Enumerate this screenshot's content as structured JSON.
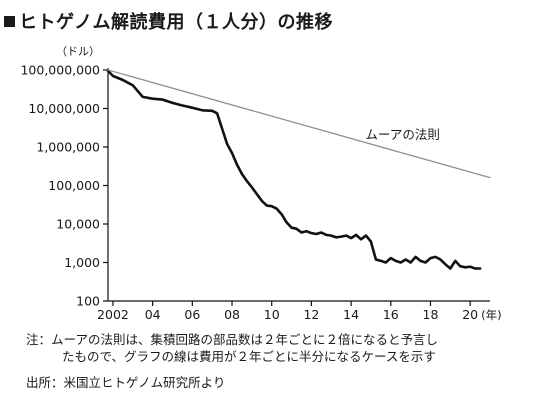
{
  "title": "ヒトゲノム解読費用（１人分）の推移",
  "notes": {
    "line1": "注：ムーアの法則は、集積回路の部品数は２年ごとに２倍になると予言し",
    "line2": "たもので、グラフの線は費用が２年ごとに半分になるケースを示す"
  },
  "source": "出所：米国立ヒトゲノム研究所より",
  "colors": {
    "cost_line": "#111111",
    "moore_line": "#8f8f8f",
    "axis": "#111111"
  },
  "chart_data": {
    "type": "line",
    "title": "ヒトゲノム解読費用（１人分）の推移",
    "ylabel": "（ドル）",
    "xlabel": "(年)",
    "yscale": "log",
    "ylim": [
      100,
      100000000
    ],
    "xlim": [
      2001.75,
      2021.0
    ],
    "y_tick_values": [
      100,
      1000,
      10000,
      100000,
      1000000,
      10000000,
      100000000
    ],
    "y_tick_labels": [
      "100",
      "1,000",
      "10,000",
      "100,000",
      "1,000,000",
      "10,000,000",
      "100,000,000"
    ],
    "x_tick_values": [
      2002,
      2004,
      2006,
      2008,
      2010,
      2012,
      2014,
      2016,
      2018,
      2020
    ],
    "x_tick_labels": [
      "2002",
      "04",
      "06",
      "08",
      "10",
      "12",
      "14",
      "16",
      "18",
      "20"
    ],
    "grid": false,
    "series": [
      {
        "name": "",
        "style": "bold",
        "x": [
          2001.75,
          2002.0,
          2002.5,
          2003.0,
          2003.5,
          2004.0,
          2004.5,
          2005.0,
          2005.5,
          2006.0,
          2006.5,
          2007.0,
          2007.25,
          2007.5,
          2007.75,
          2008.0,
          2008.25,
          2008.5,
          2008.75,
          2009.0,
          2009.25,
          2009.5,
          2009.75,
          2010.0,
          2010.25,
          2010.5,
          2010.75,
          2011.0,
          2011.25,
          2011.5,
          2011.75,
          2012.0,
          2012.25,
          2012.5,
          2012.75,
          2013.0,
          2013.25,
          2013.5,
          2013.75,
          2014.0,
          2014.25,
          2014.5,
          2014.75,
          2015.0,
          2015.25,
          2015.5,
          2015.75,
          2016.0,
          2016.25,
          2016.5,
          2016.75,
          2017.0,
          2017.25,
          2017.5,
          2017.75,
          2018.0,
          2018.25,
          2018.5,
          2018.75,
          2019.0,
          2019.25,
          2019.5,
          2019.75,
          2020.0,
          2020.25,
          2020.5
        ],
        "values": [
          95000000,
          70000000,
          55000000,
          40000000,
          20000000,
          18000000,
          17000000,
          14000000,
          12000000,
          10500000,
          9000000,
          8700000,
          7500000,
          3000000,
          1200000,
          700000,
          350000,
          200000,
          130000,
          90000,
          60000,
          40000,
          30000,
          29000,
          25000,
          18000,
          11000,
          8000,
          7500,
          6000,
          6500,
          5800,
          5500,
          6000,
          5200,
          5000,
          4500,
          4700,
          5000,
          4300,
          5200,
          4000,
          5000,
          3500,
          1200,
          1100,
          1000,
          1300,
          1100,
          1000,
          1200,
          1000,
          1400,
          1100,
          1000,
          1300,
          1400,
          1200,
          900,
          700,
          1100,
          800,
          750,
          780,
          700,
          700
        ]
      },
      {
        "name": "ムーアの法則",
        "style": "thin",
        "x": [
          2001.75,
          2021.0
        ],
        "values": [
          100000000,
          160000
        ]
      }
    ],
    "annotations": [
      {
        "text": "ムーアの法則",
        "x": 2016.6,
        "y": 1600000
      }
    ]
  }
}
